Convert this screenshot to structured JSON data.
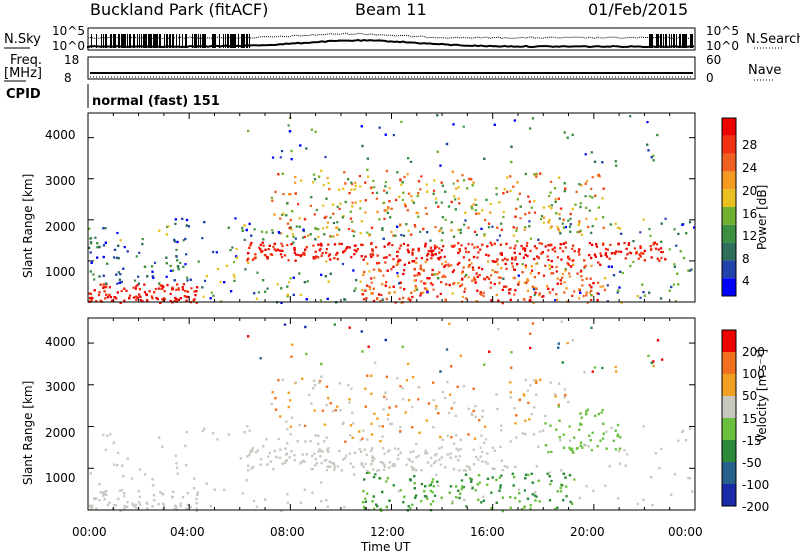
{
  "header": {
    "title": "Buckland Park (fitACF)",
    "beam": "Beam 11",
    "date": "01/Feb/2015"
  },
  "panels": {
    "nsky_label": "N.Sky",
    "nsky_ticks": [
      "10^5",
      "10^0"
    ],
    "nsearch_label": "N.Search",
    "nsearch_ticks": [
      "10^5",
      "10^0"
    ],
    "freq_label": "Freq.",
    "freq_unit": "[MHz]",
    "freq_ticks": [
      "18",
      "8"
    ],
    "nave_label": "Nave",
    "nave_ticks": [
      "60",
      "0"
    ],
    "cpid_label": "CPID",
    "cpid_value": "normal (fast) 151"
  },
  "chart_data": [
    {
      "type": "heatmap",
      "name": "power",
      "ylabel": "Slant Range [km]",
      "yticks": [
        "4000",
        "3000",
        "2000",
        "1000"
      ],
      "xticks": [
        "00:00",
        "04:00",
        "08:00",
        "12:00",
        "16:00",
        "20:00",
        "00:00"
      ],
      "xlabel": "Time UT",
      "colorbar_label": "Power [dB]",
      "colorbar_ticks": [
        "28",
        "24",
        "20",
        "16",
        "12",
        "8",
        "4"
      ],
      "colors": [
        "#0000ff",
        "#2244aa",
        "#2f6f5a",
        "#3a8f40",
        "#6fb030",
        "#e8c020",
        "#f59a20",
        "#f06020",
        "#f03010",
        "#ee0000"
      ]
    },
    {
      "type": "heatmap",
      "name": "velocity",
      "ylabel": "Slant Range [km]",
      "yticks": [
        "4000",
        "3000",
        "2000",
        "1000"
      ],
      "xticks": [
        "00:00",
        "04:00",
        "08:00",
        "12:00",
        "16:00",
        "20:00",
        "00:00"
      ],
      "xlabel": "Time UT",
      "colorbar_label": "Velocity [m s⁻¹]",
      "colorbar_ticks": [
        "200",
        "100",
        "50",
        "15",
        "-15",
        "-50",
        "-100",
        "-200"
      ],
      "colors": [
        "#1a2aa8",
        "#27608a",
        "#2b8a3a",
        "#6cc040",
        "#c8c8c0",
        "#f0a020",
        "#f07020",
        "#ee0000"
      ]
    }
  ]
}
